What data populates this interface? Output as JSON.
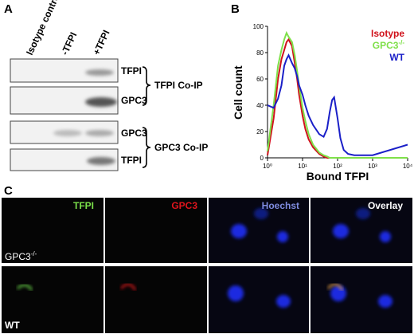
{
  "panel_labels": [
    "A",
    "B",
    "C"
  ],
  "panel_a": {
    "lanes": [
      "Isotype control",
      "-TFPI",
      "+TFPI"
    ],
    "blot_labels": [
      "TFPI",
      "GPC3",
      "GPC3",
      "TFPI"
    ],
    "groups": [
      "TFPI Co-IP",
      "GPC3 Co-IP"
    ]
  },
  "chart_data": {
    "type": "line",
    "xlabel": "Bound TFPI",
    "ylabel": "Cell count",
    "x": [
      1,
      1.5,
      2,
      2.5,
      3,
      3.5,
      4,
      5,
      6,
      7,
      8,
      10,
      12,
      15,
      20,
      30,
      40,
      50,
      60,
      70,
      80,
      100,
      120,
      150,
      200,
      300,
      1000,
      10000
    ],
    "series": [
      {
        "name": "Isotype",
        "color": "#d0121b",
        "values": [
          2,
          30,
          60,
          75,
          82,
          88,
          90,
          85,
          72,
          60,
          48,
          32,
          22,
          14,
          8,
          3,
          1,
          0,
          0,
          0,
          0,
          0,
          0,
          0,
          0,
          0,
          0,
          0
        ]
      },
      {
        "name": {
          "base": "GPC3",
          "sup": "-/-"
        },
        "color": "#7fe04a",
        "values": [
          5,
          40,
          70,
          82,
          90,
          95,
          92,
          88,
          78,
          66,
          55,
          38,
          28,
          18,
          10,
          4,
          2,
          1,
          0,
          0,
          0,
          0,
          0,
          0,
          0,
          0,
          0,
          0
        ]
      },
      {
        "name": "WT",
        "color": "#1a1fc8",
        "values": [
          40,
          38,
          45,
          55,
          70,
          75,
          78,
          72,
          68,
          62,
          55,
          48,
          40,
          32,
          25,
          18,
          16,
          22,
          35,
          44,
          46,
          30,
          15,
          6,
          3,
          2,
          2,
          10
        ]
      }
    ],
    "xscale": "log",
    "xlim": [
      1,
      10000
    ],
    "xticks": [
      {
        "value": 1,
        "label": "10⁰"
      },
      {
        "value": 10,
        "label": "10¹"
      },
      {
        "value": 100,
        "label": "10²"
      },
      {
        "value": 1000,
        "label": "10³"
      },
      {
        "value": 10000,
        "label": "10⁴"
      }
    ],
    "ylim": [
      0,
      100
    ],
    "yticks": [
      0,
      20,
      40,
      60,
      80,
      100
    ],
    "legend": "upper right"
  },
  "panel_c": {
    "columns": [
      {
        "text": "TFPI",
        "color": "#7be04a"
      },
      {
        "text": "GPC3",
        "color": "#e0141c"
      },
      {
        "text": "Hoechst",
        "color": "#7f8ce0"
      },
      {
        "text": "Overlay",
        "color": "#ffffff"
      }
    ],
    "rows": [
      {
        "base": "GPC3",
        "sup": "-/-"
      },
      {
        "base": "WT",
        "sup": null
      }
    ]
  }
}
